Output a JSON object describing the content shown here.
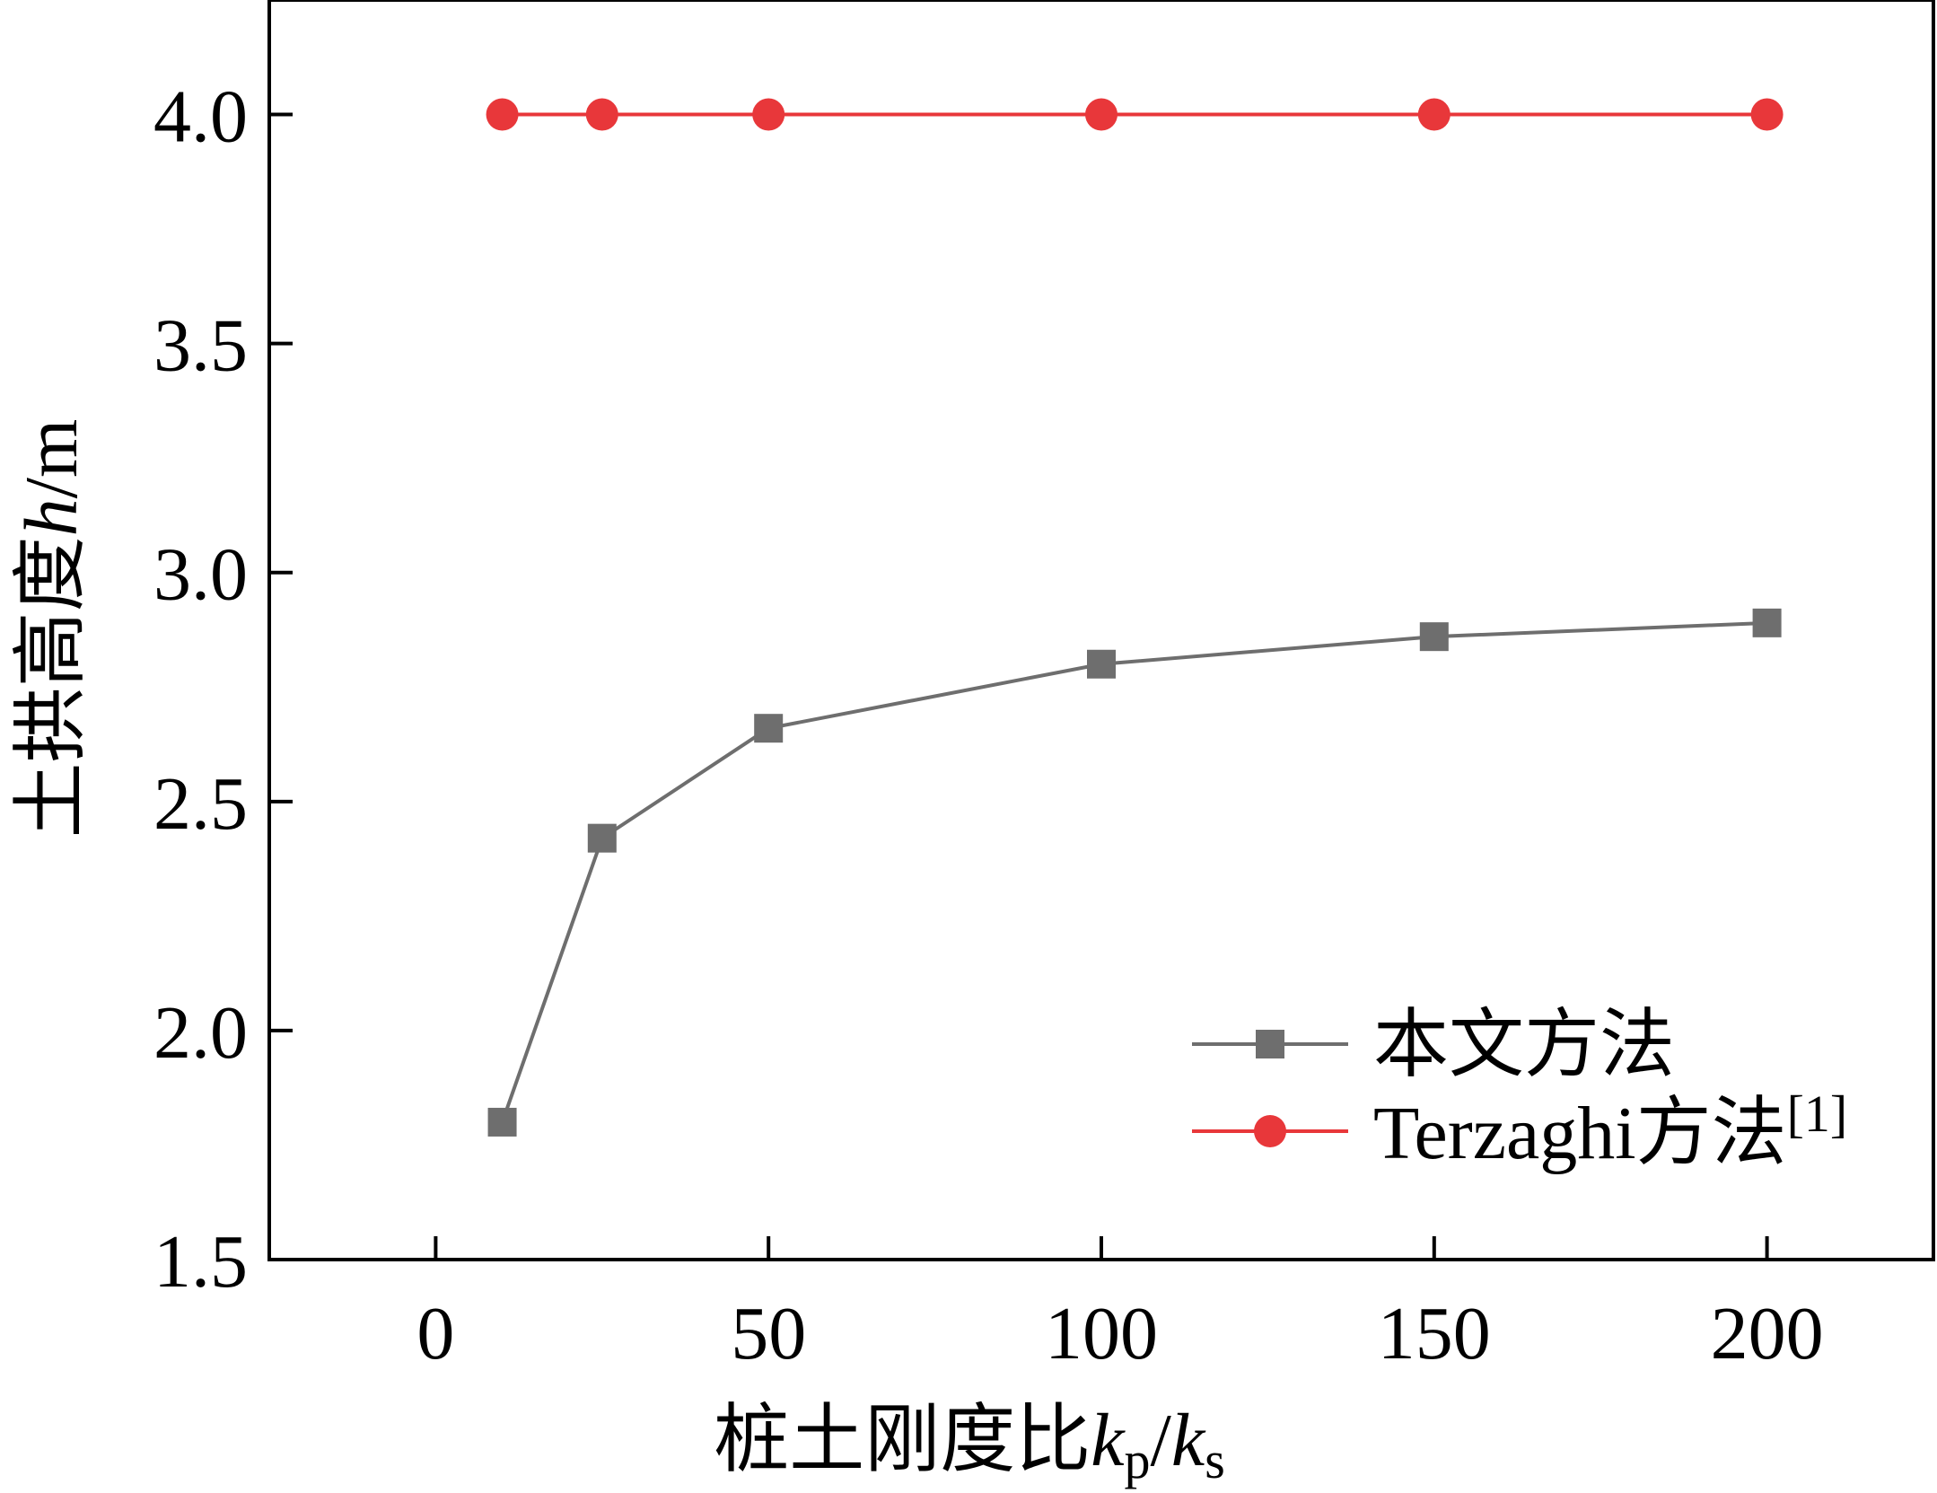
{
  "chart_data": {
    "type": "line",
    "x": [
      10,
      25,
      50,
      100,
      150,
      200
    ],
    "series": [
      {
        "name": "本文方法",
        "values": [
          1.8,
          2.42,
          2.66,
          2.8,
          2.86,
          2.89
        ],
        "color": "#6e6e6e",
        "marker": "square"
      },
      {
        "name": "Terzaghi方法",
        "name_sup": "[1]",
        "values": [
          4.0,
          4.0,
          4.0,
          4.0,
          4.0,
          4.0
        ],
        "color": "#e8373a",
        "marker": "circle"
      }
    ],
    "xlim": [
      -25,
      225
    ],
    "ylim": [
      1.5,
      4.25
    ],
    "x_ticks": [
      0,
      50,
      100,
      150,
      200
    ],
    "x_tick_labels": [
      "0",
      "50",
      "100",
      "150",
      "200"
    ],
    "y_ticks": [
      1.5,
      2.0,
      2.5,
      3.0,
      3.5,
      4.0
    ],
    "y_tick_labels": [
      "1.5",
      "2.0",
      "2.5",
      "3.0",
      "3.5",
      "4.0"
    ],
    "xlabel": {
      "prefix": "桩土刚度比",
      "var1": "k",
      "sub1": "p",
      "sep": "/",
      "var2": "k",
      "sub2": "s"
    },
    "ylabel": {
      "prefix": "土拱高度",
      "var": "h",
      "unit": "/m"
    },
    "legend_position": "lower-right",
    "grid": false
  }
}
